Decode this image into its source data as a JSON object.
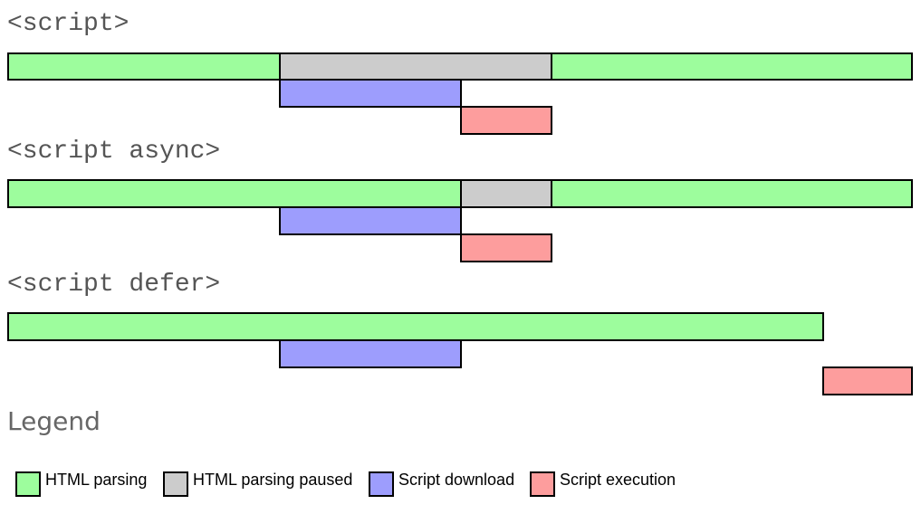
{
  "colors": {
    "parsing": "#9dfd9d",
    "paused": "#cccccc",
    "download": "#9d9dfd",
    "execution": "#fd9d9d"
  },
  "sections": [
    {
      "title": "<script>"
    },
    {
      "title": "<script async>"
    },
    {
      "title": "<script defer>"
    }
  ],
  "legend": {
    "title": "Legend",
    "items": [
      {
        "label": "HTML parsing",
        "color_key": "parsing"
      },
      {
        "label": "HTML parsing paused",
        "color_key": "paused"
      },
      {
        "label": "Script download",
        "color_key": "download"
      },
      {
        "label": "Script execution",
        "color_key": "execution"
      }
    ]
  }
}
